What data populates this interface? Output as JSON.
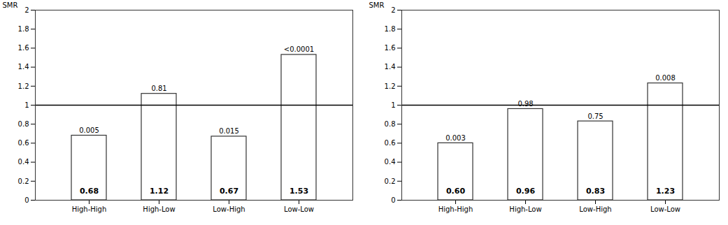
{
  "chart_data": [
    {
      "type": "bar",
      "categories": [
        "High-High",
        "High-Low",
        "Low-High",
        "Low-Low"
      ],
      "values": [
        0.68,
        1.12,
        0.67,
        1.53
      ],
      "value_labels": [
        "0.68",
        "1.12",
        "0.67",
        "1.53"
      ],
      "p_values": [
        "0.005",
        "0.81",
        "0.015",
        "<0.0001"
      ],
      "hline": 1.0,
      "ylabel": "SMR",
      "ylim": [
        0,
        2
      ],
      "yticks": [
        0,
        0.2,
        0.4,
        0.6,
        0.8,
        1,
        1.2,
        1.4,
        1.6,
        1.8,
        2
      ],
      "color": "#ffffff",
      "data_labels": true,
      "grid": false
    },
    {
      "type": "bar",
      "categories": [
        "High-High",
        "High-Low",
        "Low-High",
        "Low-Low"
      ],
      "values": [
        0.6,
        0.96,
        0.83,
        1.23
      ],
      "value_labels": [
        "0.60",
        "0.96",
        "0.83",
        "1.23"
      ],
      "p_values": [
        "0.003",
        "0.98",
        "0.75",
        "0.008"
      ],
      "hline": 1.0,
      "ylabel": "SMR",
      "ylim": [
        0,
        2
      ],
      "yticks": [
        0,
        0.2,
        0.4,
        0.6,
        0.8,
        1,
        1.2,
        1.4,
        1.6,
        1.8,
        2
      ],
      "color": "#ffffff",
      "data_labels": true,
      "grid": false
    }
  ]
}
